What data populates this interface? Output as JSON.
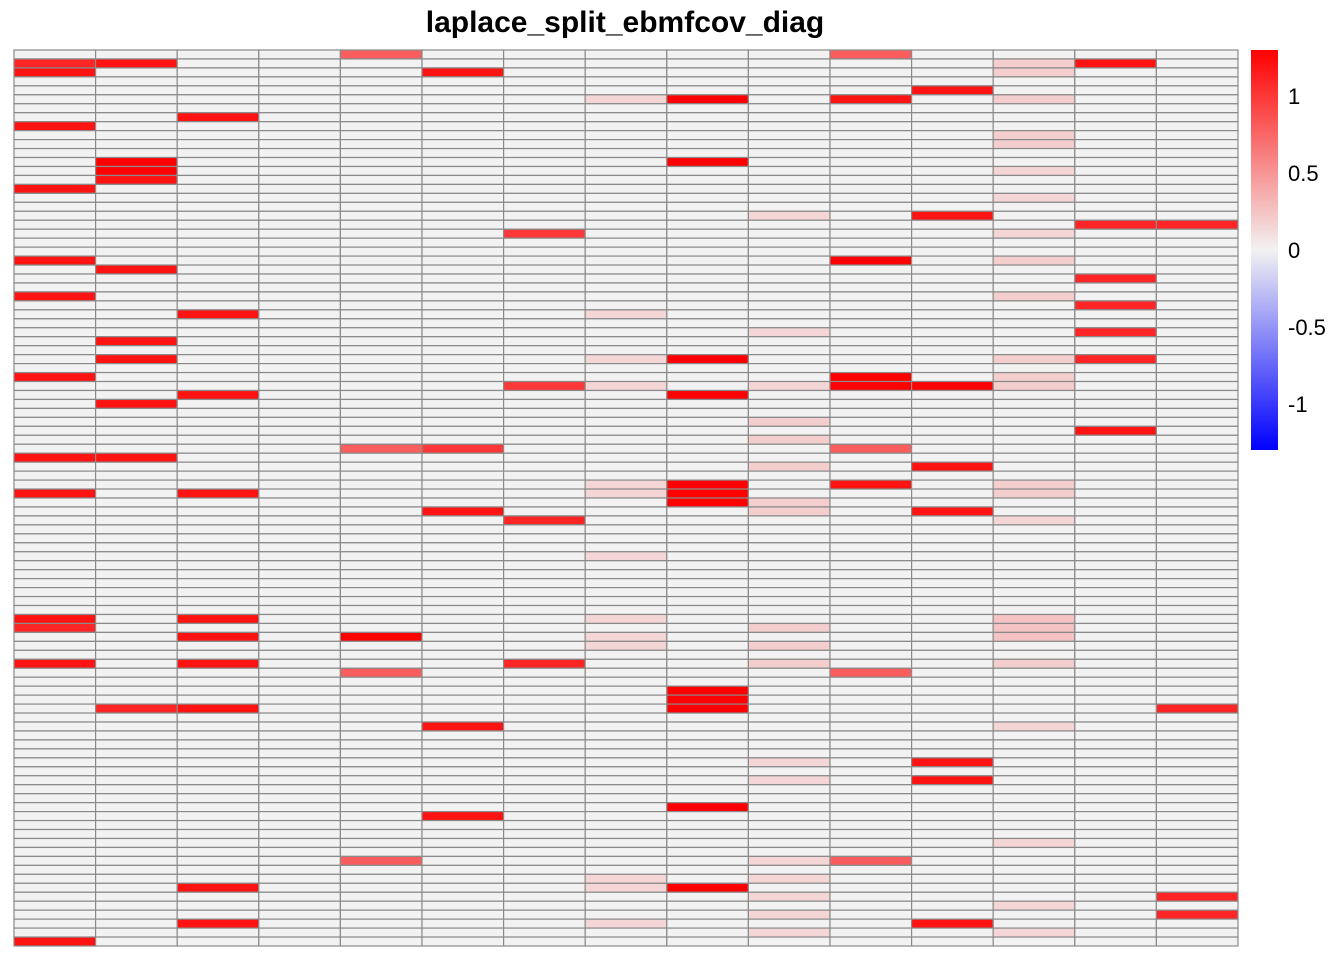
{
  "chart_data": {
    "type": "heatmap",
    "title": "laplace_split_ebmfcov_diag",
    "n_rows": 100,
    "n_cols": 15,
    "grid": true,
    "legend": {
      "placement": "right",
      "range": [
        -1.3,
        1.3
      ],
      "ticks": [
        1,
        0.5,
        0,
        -0.5,
        -1
      ],
      "tick_labels": [
        "1",
        "0.5",
        "0",
        "-0.5",
        "-1"
      ],
      "low_color": "#0000FF",
      "mid_color": "#F2F2F2",
      "high_color": "#FF0000"
    },
    "background_value": 0,
    "cells": [
      {
        "row": 2,
        "col": 1,
        "value": 1.1
      },
      {
        "row": 3,
        "col": 1,
        "value": 1.2
      },
      {
        "row": 9,
        "col": 1,
        "value": 1.2
      },
      {
        "row": 16,
        "col": 1,
        "value": 1.2
      },
      {
        "row": 24,
        "col": 1,
        "value": 1.2
      },
      {
        "row": 28,
        "col": 1,
        "value": 1.2
      },
      {
        "row": 37,
        "col": 1,
        "value": 1.2
      },
      {
        "row": 46,
        "col": 1,
        "value": 1.2
      },
      {
        "row": 50,
        "col": 1,
        "value": 1.2
      },
      {
        "row": 64,
        "col": 1,
        "value": 1.2
      },
      {
        "row": 65,
        "col": 1,
        "value": 1.1
      },
      {
        "row": 69,
        "col": 1,
        "value": 1.2
      },
      {
        "row": 100,
        "col": 1,
        "value": 1.2
      },
      {
        "row": 2,
        "col": 2,
        "value": 1.2
      },
      {
        "row": 13,
        "col": 2,
        "value": 1.3
      },
      {
        "row": 14,
        "col": 2,
        "value": 1.3
      },
      {
        "row": 15,
        "col": 2,
        "value": 1.2
      },
      {
        "row": 25,
        "col": 2,
        "value": 1.2
      },
      {
        "row": 33,
        "col": 2,
        "value": 1.2
      },
      {
        "row": 35,
        "col": 2,
        "value": 1.2
      },
      {
        "row": 40,
        "col": 2,
        "value": 1.2
      },
      {
        "row": 46,
        "col": 2,
        "value": 1.2
      },
      {
        "row": 74,
        "col": 2,
        "value": 1.1
      },
      {
        "row": 8,
        "col": 3,
        "value": 1.2
      },
      {
        "row": 30,
        "col": 3,
        "value": 1.2
      },
      {
        "row": 39,
        "col": 3,
        "value": 1.2
      },
      {
        "row": 50,
        "col": 3,
        "value": 1.2
      },
      {
        "row": 64,
        "col": 3,
        "value": 1.2
      },
      {
        "row": 66,
        "col": 3,
        "value": 1.2
      },
      {
        "row": 69,
        "col": 3,
        "value": 1.2
      },
      {
        "row": 74,
        "col": 3,
        "value": 1.2
      },
      {
        "row": 94,
        "col": 3,
        "value": 1.2
      },
      {
        "row": 98,
        "col": 3,
        "value": 1.2
      },
      {
        "row": 1,
        "col": 5,
        "value": 0.8
      },
      {
        "row": 45,
        "col": 5,
        "value": 0.8
      },
      {
        "row": 66,
        "col": 5,
        "value": 1.3
      },
      {
        "row": 70,
        "col": 5,
        "value": 0.8
      },
      {
        "row": 91,
        "col": 5,
        "value": 0.8
      },
      {
        "row": 3,
        "col": 6,
        "value": 1.2
      },
      {
        "row": 45,
        "col": 6,
        "value": 1.0
      },
      {
        "row": 52,
        "col": 6,
        "value": 1.2
      },
      {
        "row": 76,
        "col": 6,
        "value": 1.2
      },
      {
        "row": 86,
        "col": 6,
        "value": 1.2
      },
      {
        "row": 21,
        "col": 7,
        "value": 1.0
      },
      {
        "row": 38,
        "col": 7,
        "value": 1.0
      },
      {
        "row": 53,
        "col": 7,
        "value": 1.1
      },
      {
        "row": 69,
        "col": 7,
        "value": 1.1
      },
      {
        "row": 6,
        "col": 8,
        "value": 0.15
      },
      {
        "row": 30,
        "col": 8,
        "value": 0.15
      },
      {
        "row": 35,
        "col": 8,
        "value": 0.15
      },
      {
        "row": 38,
        "col": 8,
        "value": 0.15
      },
      {
        "row": 49,
        "col": 8,
        "value": 0.15
      },
      {
        "row": 50,
        "col": 8,
        "value": 0.15
      },
      {
        "row": 57,
        "col": 8,
        "value": 0.15
      },
      {
        "row": 64,
        "col": 8,
        "value": 0.15
      },
      {
        "row": 66,
        "col": 8,
        "value": 0.15
      },
      {
        "row": 67,
        "col": 8,
        "value": 0.15
      },
      {
        "row": 93,
        "col": 8,
        "value": 0.15
      },
      {
        "row": 94,
        "col": 8,
        "value": 0.15
      },
      {
        "row": 98,
        "col": 8,
        "value": 0.15
      },
      {
        "row": 6,
        "col": 9,
        "value": 1.3
      },
      {
        "row": 13,
        "col": 9,
        "value": 1.3
      },
      {
        "row": 35,
        "col": 9,
        "value": 1.3
      },
      {
        "row": 39,
        "col": 9,
        "value": 1.3
      },
      {
        "row": 49,
        "col": 9,
        "value": 1.3
      },
      {
        "row": 50,
        "col": 9,
        "value": 1.3
      },
      {
        "row": 51,
        "col": 9,
        "value": 1.3
      },
      {
        "row": 72,
        "col": 9,
        "value": 1.3
      },
      {
        "row": 73,
        "col": 9,
        "value": 1.3
      },
      {
        "row": 74,
        "col": 9,
        "value": 1.3
      },
      {
        "row": 85,
        "col": 9,
        "value": 1.3
      },
      {
        "row": 94,
        "col": 9,
        "value": 1.3
      },
      {
        "row": 19,
        "col": 10,
        "value": 0.15
      },
      {
        "row": 32,
        "col": 10,
        "value": 0.15
      },
      {
        "row": 38,
        "col": 10,
        "value": 0.15
      },
      {
        "row": 42,
        "col": 10,
        "value": 0.2
      },
      {
        "row": 44,
        "col": 10,
        "value": 0.2
      },
      {
        "row": 47,
        "col": 10,
        "value": 0.2
      },
      {
        "row": 51,
        "col": 10,
        "value": 0.2
      },
      {
        "row": 52,
        "col": 10,
        "value": 0.2
      },
      {
        "row": 65,
        "col": 10,
        "value": 0.2
      },
      {
        "row": 67,
        "col": 10,
        "value": 0.2
      },
      {
        "row": 69,
        "col": 10,
        "value": 0.2
      },
      {
        "row": 80,
        "col": 10,
        "value": 0.15
      },
      {
        "row": 82,
        "col": 10,
        "value": 0.15
      },
      {
        "row": 91,
        "col": 10,
        "value": 0.15
      },
      {
        "row": 93,
        "col": 10,
        "value": 0.15
      },
      {
        "row": 95,
        "col": 10,
        "value": 0.15
      },
      {
        "row": 97,
        "col": 10,
        "value": 0.15
      },
      {
        "row": 99,
        "col": 10,
        "value": 0.15
      },
      {
        "row": 1,
        "col": 11,
        "value": 0.8
      },
      {
        "row": 6,
        "col": 11,
        "value": 1.2
      },
      {
        "row": 24,
        "col": 11,
        "value": 1.3
      },
      {
        "row": 37,
        "col": 11,
        "value": 1.3
      },
      {
        "row": 38,
        "col": 11,
        "value": 1.3
      },
      {
        "row": 45,
        "col": 11,
        "value": 0.8
      },
      {
        "row": 49,
        "col": 11,
        "value": 1.2
      },
      {
        "row": 70,
        "col": 11,
        "value": 0.8
      },
      {
        "row": 91,
        "col": 11,
        "value": 0.8
      },
      {
        "row": 5,
        "col": 12,
        "value": 1.2
      },
      {
        "row": 19,
        "col": 12,
        "value": 1.2
      },
      {
        "row": 38,
        "col": 12,
        "value": 1.3
      },
      {
        "row": 47,
        "col": 12,
        "value": 1.2
      },
      {
        "row": 52,
        "col": 12,
        "value": 1.2
      },
      {
        "row": 80,
        "col": 12,
        "value": 1.2
      },
      {
        "row": 82,
        "col": 12,
        "value": 1.2
      },
      {
        "row": 98,
        "col": 12,
        "value": 1.2
      },
      {
        "row": 2,
        "col": 13,
        "value": 0.2
      },
      {
        "row": 3,
        "col": 13,
        "value": 0.2
      },
      {
        "row": 6,
        "col": 13,
        "value": 0.2
      },
      {
        "row": 10,
        "col": 13,
        "value": 0.2
      },
      {
        "row": 11,
        "col": 13,
        "value": 0.2
      },
      {
        "row": 14,
        "col": 13,
        "value": 0.15
      },
      {
        "row": 17,
        "col": 13,
        "value": 0.15
      },
      {
        "row": 21,
        "col": 13,
        "value": 0.15
      },
      {
        "row": 24,
        "col": 13,
        "value": 0.2
      },
      {
        "row": 28,
        "col": 13,
        "value": 0.2
      },
      {
        "row": 35,
        "col": 13,
        "value": 0.2
      },
      {
        "row": 37,
        "col": 13,
        "value": 0.2
      },
      {
        "row": 38,
        "col": 13,
        "value": 0.2
      },
      {
        "row": 49,
        "col": 13,
        "value": 0.2
      },
      {
        "row": 50,
        "col": 13,
        "value": 0.2
      },
      {
        "row": 53,
        "col": 13,
        "value": 0.15
      },
      {
        "row": 64,
        "col": 13,
        "value": 0.25
      },
      {
        "row": 65,
        "col": 13,
        "value": 0.25
      },
      {
        "row": 66,
        "col": 13,
        "value": 0.25
      },
      {
        "row": 69,
        "col": 13,
        "value": 0.2
      },
      {
        "row": 76,
        "col": 13,
        "value": 0.15
      },
      {
        "row": 89,
        "col": 13,
        "value": 0.15
      },
      {
        "row": 96,
        "col": 13,
        "value": 0.15
      },
      {
        "row": 99,
        "col": 13,
        "value": 0.15
      },
      {
        "row": 2,
        "col": 14,
        "value": 1.2
      },
      {
        "row": 20,
        "col": 14,
        "value": 1.1
      },
      {
        "row": 26,
        "col": 14,
        "value": 1.1
      },
      {
        "row": 29,
        "col": 14,
        "value": 1.1
      },
      {
        "row": 32,
        "col": 14,
        "value": 1.1
      },
      {
        "row": 35,
        "col": 14,
        "value": 1.1
      },
      {
        "row": 43,
        "col": 14,
        "value": 1.2
      },
      {
        "row": 20,
        "col": 15,
        "value": 1.1
      },
      {
        "row": 74,
        "col": 15,
        "value": 1.1
      },
      {
        "row": 95,
        "col": 15,
        "value": 1.1
      },
      {
        "row": 97,
        "col": 15,
        "value": 1.1
      }
    ]
  }
}
